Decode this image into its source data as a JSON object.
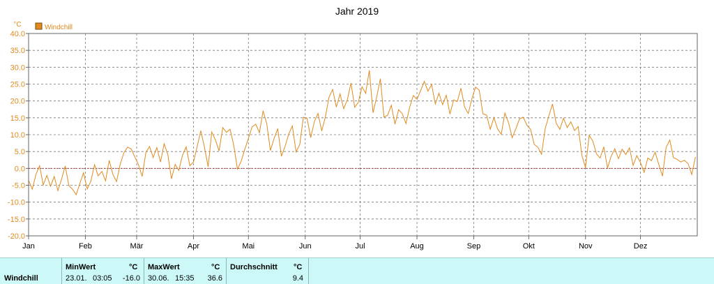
{
  "chart_data": {
    "type": "line",
    "title": "Jahr 2019",
    "ylabel": "°C",
    "ylim": [
      -20,
      40
    ],
    "yticks": [
      "40.0",
      "35.0",
      "30.0",
      "25.0",
      "20.0",
      "15.0",
      "10.0",
      "5.0",
      "0.0",
      "-5.0",
      "-10.0",
      "-15.0",
      "-20.0"
    ],
    "xticks": [
      "Jan",
      "Feb",
      "Mär",
      "Apr",
      "Mai",
      "Jun",
      "Jul",
      "Aug",
      "Sep",
      "Okt",
      "Nov",
      "Dez"
    ],
    "grid": true,
    "legend": "top-left",
    "zero_line": true,
    "series": [
      {
        "name": "Windchill",
        "color": "#e08a1e",
        "x_days": [
          0,
          2,
          4,
          6,
          8,
          10,
          12,
          14,
          16,
          18,
          20,
          22,
          24,
          26,
          28,
          30,
          32,
          34,
          36,
          38,
          40,
          42,
          44,
          46,
          48,
          50,
          52,
          54,
          56,
          58,
          60,
          62,
          64,
          66,
          68,
          70,
          72,
          74,
          76,
          78,
          80,
          82,
          84,
          86,
          88,
          90,
          92,
          94,
          96,
          98,
          100,
          102,
          104,
          106,
          108,
          110,
          112,
          114,
          116,
          118,
          120,
          122,
          124,
          126,
          128,
          130,
          132,
          134,
          136,
          138,
          140,
          142,
          144,
          146,
          148,
          150,
          152,
          154,
          156,
          158,
          160,
          162,
          164,
          166,
          168,
          170,
          172,
          174,
          176,
          178,
          180,
          182,
          184,
          186,
          188,
          190,
          192,
          194,
          196,
          198,
          200,
          202,
          204,
          206,
          208,
          210,
          212,
          214,
          216,
          218,
          220,
          222,
          224,
          226,
          228,
          230,
          232,
          234,
          236,
          238,
          240,
          242,
          244,
          246,
          248,
          250,
          252,
          254,
          256,
          258,
          260,
          262,
          264,
          266,
          268,
          270,
          272,
          274,
          276,
          278,
          280,
          282,
          284,
          286,
          288,
          290,
          292,
          294,
          296,
          298,
          300,
          302,
          304,
          306,
          308,
          310,
          312,
          314,
          316,
          318,
          320,
          322,
          324,
          326,
          328,
          330,
          332,
          334,
          336,
          338,
          340,
          342,
          344,
          346,
          348,
          350,
          352,
          354,
          356,
          358,
          360,
          362,
          364
        ],
        "values": [
          -3.5,
          -6.2,
          -1.8,
          0.8,
          -4.9,
          -2.1,
          -5.3,
          -2.4,
          -6.6,
          -3.2,
          0.7,
          -5.1,
          -6.2,
          -7.8,
          -4.4,
          -1.3,
          -6.1,
          -3.8,
          1.1,
          -2.2,
          -0.9,
          -3.7,
          2.4,
          -1.8,
          -3.9,
          1.2,
          4.6,
          6.3,
          5.8,
          3.4,
          1.1,
          -2.4,
          4.7,
          6.5,
          3.2,
          6.2,
          1.9,
          7.3,
          4.1,
          -3.1,
          1.2,
          -0.6,
          3.9,
          6.4,
          0.8,
          1.9,
          6.4,
          11.2,
          6.3,
          0.5,
          10.8,
          8.4,
          5.2,
          12.1,
          10.7,
          11.6,
          6.8,
          -0.2,
          2.1,
          5.6,
          8.9,
          12.3,
          13.1,
          10.6,
          17.1,
          13.2,
          5.3,
          8.9,
          11.8,
          3.6,
          6.5,
          10.2,
          12.6,
          4.9,
          7.1,
          15.2,
          14.8,
          9.1,
          13.9,
          16.3,
          11.1,
          15.2,
          21.1,
          23.4,
          18.2,
          22.1,
          17.7,
          20.4,
          25.3,
          18.1,
          19.6,
          24.2,
          22.3,
          29.1,
          16.5,
          21.1,
          26.6,
          15.2,
          15.8,
          18.7,
          13.1,
          17.4,
          16.2,
          13.3,
          18.1,
          21.6,
          20.5,
          23.1,
          25.8,
          22.9,
          24.9,
          19.1,
          22.3,
          18.9,
          21.7,
          16.1,
          20.3,
          19.8,
          23.8,
          18.2,
          16.3,
          20.7,
          24.1,
          23.2,
          16.2,
          15.8,
          11.6,
          15.1,
          11.7,
          10.1,
          16.4,
          13.5,
          9.1,
          11.8,
          14.7,
          15.2,
          12.8,
          11.6,
          7.1,
          6.3,
          4.2,
          11.8,
          15.6,
          19.1,
          13.4,
          11.6,
          14.9,
          12.1,
          13.8,
          11.2,
          12.4,
          3.9,
          0.2,
          9.8,
          8.1,
          4.3,
          3.1,
          6.4,
          0.1,
          3.6,
          5.8,
          2.9,
          5.7,
          4.1,
          6.1,
          0.9,
          3.8,
          1.7,
          -1.2,
          3.1,
          2.3,
          4.8,
          1.2,
          -2.3,
          6.2,
          8.4,
          3.2,
          2.7,
          1.9,
          2.4,
          1.4,
          -1.8,
          3.4
        ]
      }
    ]
  },
  "stats": {
    "series_label": "Windchill",
    "min": {
      "header": "MinWert",
      "unit": "°C",
      "date": "23.01.",
      "time": "03:05",
      "value": "-16.0"
    },
    "max": {
      "header": "MaxWert",
      "unit": "°C",
      "date": "30.06.",
      "time": "15:35",
      "value": "36.6"
    },
    "avg": {
      "header": "Durchschnitt",
      "unit": "°C",
      "value": "9.4"
    }
  }
}
